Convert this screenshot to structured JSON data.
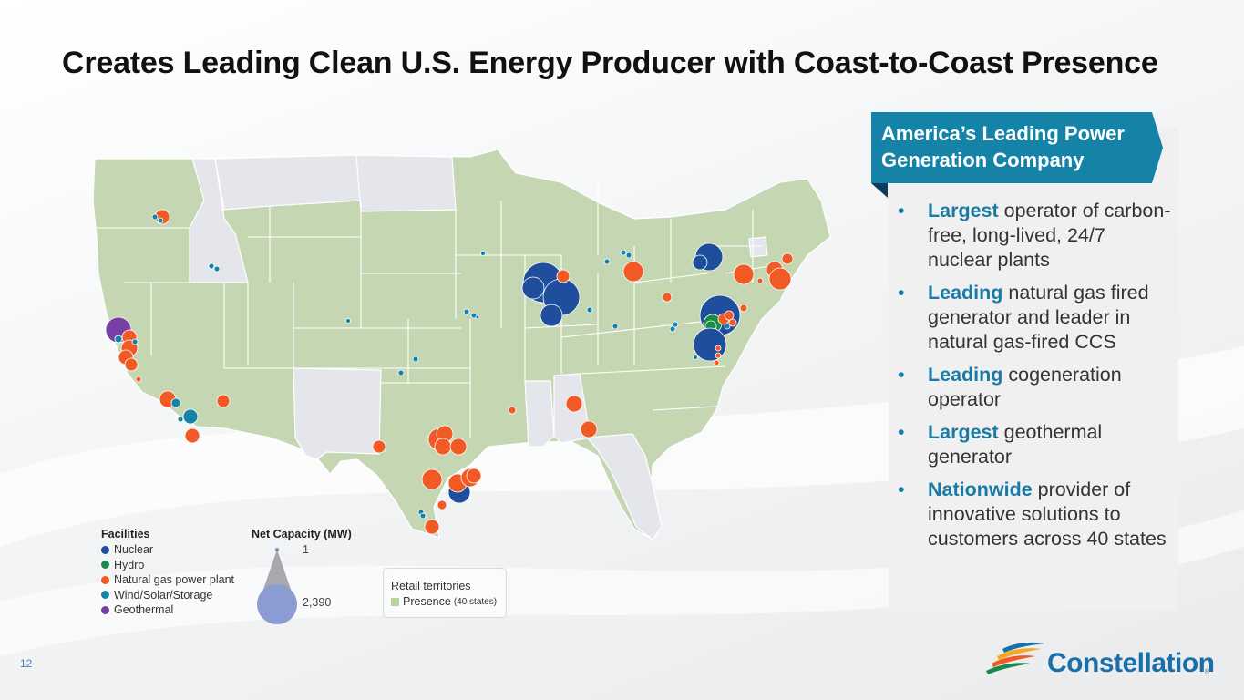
{
  "title": "Creates Leading Clean U.S. Energy Producer with Coast-to-Coast Presence",
  "legend": {
    "facilities_title": "Facilities",
    "facilities": [
      {
        "label": "Nuclear",
        "color": "#1f4e9c"
      },
      {
        "label": "Hydro",
        "color": "#1a8a4a"
      },
      {
        "label": "Natural gas power plant",
        "color": "#f15a24"
      },
      {
        "label": "Wind/Solar/Storage",
        "color": "#1583a8"
      },
      {
        "label": "Geothermal",
        "color": "#7a3fa6"
      }
    ],
    "capacity_title": "Net Capacity (MW)",
    "capacity_min": "1",
    "capacity_max": "2,390",
    "retail_title": "Retail territories",
    "retail_presence": "Presence",
    "retail_states": "(40 states)"
  },
  "panel": {
    "heading_line1": "America’s Leading Power",
    "heading_line2": "Generation Company",
    "bullets": [
      {
        "key": "Largest",
        "rest": " operator of carbon-free, long-lived, 24/7 nuclear plants"
      },
      {
        "key": "Leading",
        "rest": " natural gas fired generator and leader in natural gas-fired CCS"
      },
      {
        "key": "Leading",
        "rest": " cogeneration operator"
      },
      {
        "key": "Largest",
        "rest": " geothermal generator"
      },
      {
        "key": "Nationwide",
        "rest": " provider of innovative solutions to customers across 40 states"
      }
    ]
  },
  "page_number": "12",
  "logo": {
    "name": "Constellation",
    "reg": "®"
  },
  "colors": {
    "presence": "#c5d6b2",
    "non_presence": "#e4e6eb",
    "banner": "#1583a8",
    "accent": "#1a7aa6"
  }
}
